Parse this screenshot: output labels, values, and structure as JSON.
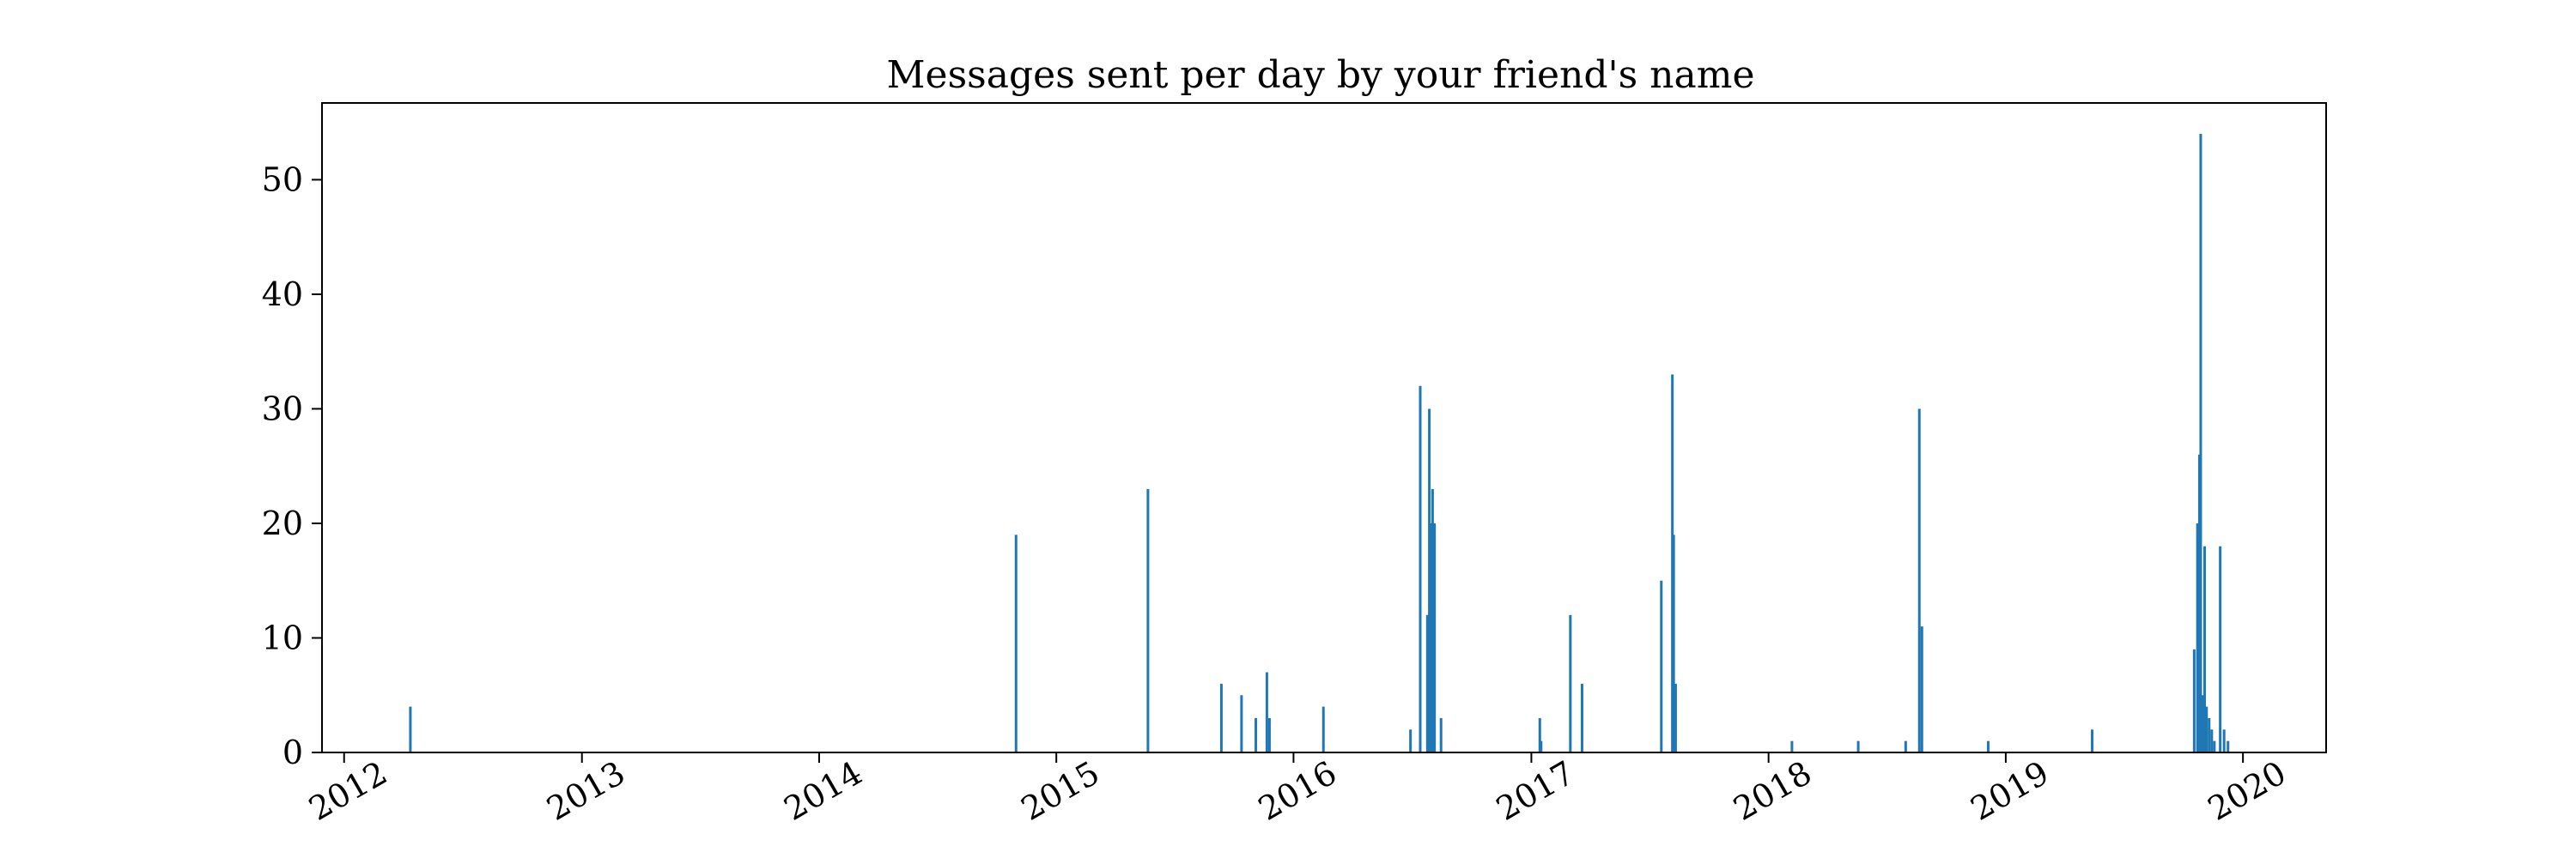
{
  "chart_data": {
    "type": "bar",
    "title": "Messages sent per day by your friend's name",
    "xlabel": "",
    "ylabel": "",
    "x_axis": "date",
    "xlim": [
      "2011-11-28",
      "2020-05-08"
    ],
    "ylim": [
      0,
      56.7
    ],
    "yticks": [
      0,
      10,
      20,
      30,
      40,
      50
    ],
    "xticks": [
      "2012-01-01",
      "2013-01-01",
      "2014-01-01",
      "2015-01-01",
      "2016-01-01",
      "2017-01-01",
      "2018-01-01",
      "2019-01-01",
      "2020-01-01"
    ],
    "xtick_labels": [
      "2012",
      "2013",
      "2014",
      "2015",
      "2016",
      "2017",
      "2018",
      "2019",
      "2020"
    ],
    "grid": false,
    "legend": "none",
    "bar_color": "#1f77b4",
    "series": [
      {
        "x": [
          "2012-04-12",
          "2014-10-31",
          "2015-05-22",
          "2015-09-12",
          "2015-10-13",
          "2015-11-04",
          "2015-11-21",
          "2015-11-25",
          "2016-02-16",
          "2016-06-29",
          "2016-07-14",
          "2016-07-25",
          "2016-07-28",
          "2016-07-31",
          "2016-08-02",
          "2016-08-05",
          "2016-08-15",
          "2017-01-14",
          "2017-01-16",
          "2017-03-02",
          "2017-03-20",
          "2017-07-20",
          "2017-08-06",
          "2017-08-08",
          "2017-08-11",
          "2018-02-06",
          "2018-05-19",
          "2018-07-31",
          "2018-08-21",
          "2018-08-25",
          "2018-12-05",
          "2019-05-14",
          "2019-10-18",
          "2019-10-23",
          "2019-10-26",
          "2019-10-28",
          "2019-10-31",
          "2019-11-03",
          "2019-11-06",
          "2019-11-10",
          "2019-11-14",
          "2019-11-18",
          "2019-11-27",
          "2019-12-03",
          "2019-12-09"
        ],
        "values": [
          4,
          19,
          23,
          6,
          5,
          3,
          7,
          3,
          4,
          2,
          32,
          12,
          30,
          20,
          23,
          20,
          3,
          3,
          1,
          12,
          6,
          15,
          33,
          19,
          6,
          1,
          1,
          1,
          30,
          11,
          1,
          2,
          9,
          20,
          26,
          54,
          5,
          18,
          4,
          3,
          2,
          1,
          18,
          2,
          1
        ]
      }
    ]
  }
}
